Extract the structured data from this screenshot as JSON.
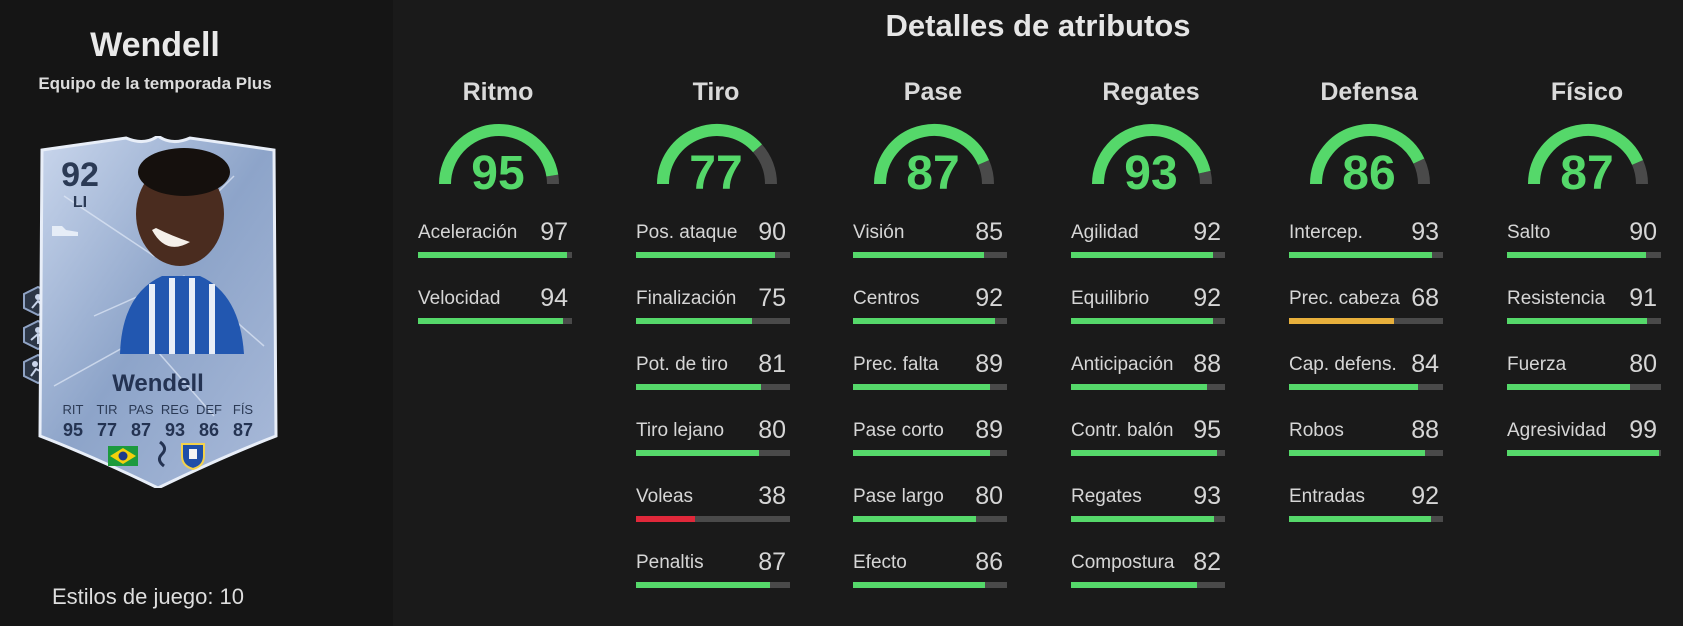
{
  "player": {
    "name": "Wendell",
    "subtitle": "Equipo de la temporada Plus",
    "playstyles_label": "Estilos de juego: 10"
  },
  "card": {
    "rating": "92",
    "position": "LI",
    "name": "Wendell",
    "stat_labels": [
      "RIT",
      "TIR",
      "PAS",
      "REG",
      "DEF",
      "FÍS"
    ],
    "stat_values": [
      "95",
      "77",
      "87",
      "93",
      "86",
      "87"
    ]
  },
  "title": "Detalles de atributos",
  "colors": {
    "good": "#55d86a",
    "medium": "#e8b03c",
    "bad": "#e0283a",
    "track": "#4a4a4a"
  },
  "categories": [
    {
      "name": "Ritmo",
      "value": 95,
      "attributes": [
        {
          "name": "Aceleración",
          "value": 97
        },
        {
          "name": "Velocidad",
          "value": 94
        }
      ]
    },
    {
      "name": "Tiro",
      "value": 77,
      "attributes": [
        {
          "name": "Pos. ataque",
          "value": 90
        },
        {
          "name": "Finalización",
          "value": 75
        },
        {
          "name": "Pot. de tiro",
          "value": 81
        },
        {
          "name": "Tiro lejano",
          "value": 80
        },
        {
          "name": "Voleas",
          "value": 38
        },
        {
          "name": "Penaltis",
          "value": 87
        }
      ]
    },
    {
      "name": "Pase",
      "value": 87,
      "attributes": [
        {
          "name": "Visión",
          "value": 85
        },
        {
          "name": "Centros",
          "value": 92
        },
        {
          "name": "Prec. falta",
          "value": 89
        },
        {
          "name": "Pase corto",
          "value": 89
        },
        {
          "name": "Pase largo",
          "value": 80
        },
        {
          "name": "Efecto",
          "value": 86
        }
      ]
    },
    {
      "name": "Regates",
      "value": 93,
      "attributes": [
        {
          "name": "Agilidad",
          "value": 92
        },
        {
          "name": "Equilibrio",
          "value": 92
        },
        {
          "name": "Anticipación",
          "value": 88
        },
        {
          "name": "Contr. balón",
          "value": 95
        },
        {
          "name": "Regates",
          "value": 93
        },
        {
          "name": "Compostura",
          "value": 82
        }
      ]
    },
    {
      "name": "Defensa",
      "value": 86,
      "attributes": [
        {
          "name": "Intercep.",
          "value": 93
        },
        {
          "name": "Prec. cabeza",
          "value": 68
        },
        {
          "name": "Cap. defens.",
          "value": 84
        },
        {
          "name": "Robos",
          "value": 88
        },
        {
          "name": "Entradas",
          "value": 92
        }
      ]
    },
    {
      "name": "Físico",
      "value": 87,
      "attributes": [
        {
          "name": "Salto",
          "value": 90
        },
        {
          "name": "Resistencia",
          "value": 91
        },
        {
          "name": "Fuerza",
          "value": 80
        },
        {
          "name": "Agresividad",
          "value": 99
        }
      ]
    }
  ]
}
